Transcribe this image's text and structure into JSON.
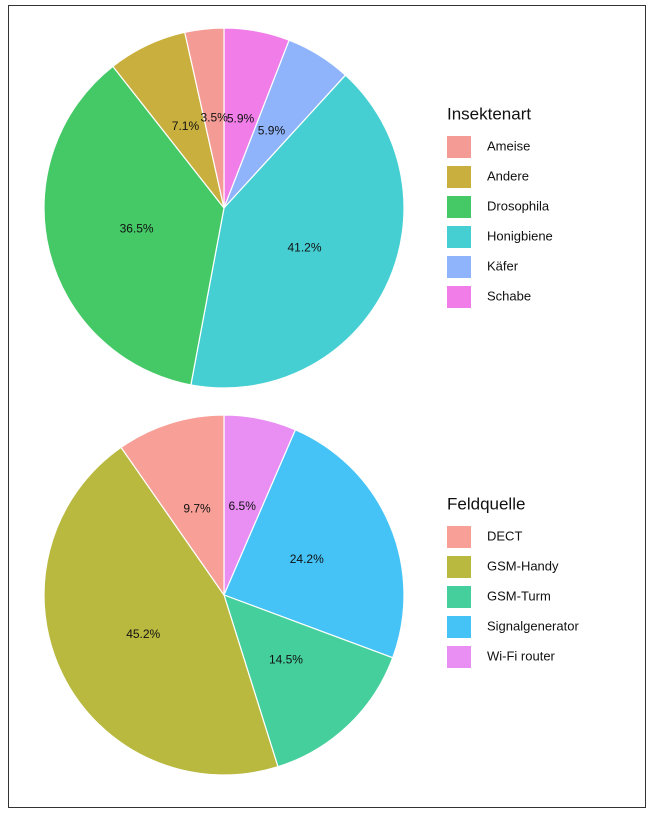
{
  "chart_data": [
    {
      "type": "pie",
      "legend_title": "Insektenart",
      "categories": [
        "Ameise",
        "Andere",
        "Drosophila",
        "Honigbiene",
        "Käfer",
        "Schabe"
      ],
      "values": [
        3.5,
        7.1,
        36.5,
        41.2,
        5.9,
        5.9
      ],
      "value_labels": [
        "3.5%",
        "7.1%",
        "36.5%",
        "41.2%",
        "5.9%",
        "5.9%"
      ],
      "colors": [
        "#F59B95",
        "#C9B03E",
        "#45C966",
        "#45CFD2",
        "#8FB4FB",
        "#F17EE8"
      ]
    },
    {
      "type": "pie",
      "legend_title": "Feldquelle",
      "categories": [
        "DECT",
        "GSM-Handy",
        "GSM-Turm",
        "Signalgenerator",
        "Wi-Fi router"
      ],
      "values": [
        9.7,
        45.2,
        14.5,
        24.2,
        6.5
      ],
      "value_labels": [
        "9.7%",
        "45.2%",
        "14.5%",
        "24.2%",
        "6.5%"
      ],
      "colors": [
        "#F8A097",
        "#B8B93E",
        "#45CF9C",
        "#45C3F6",
        "#E98EF2"
      ]
    }
  ]
}
